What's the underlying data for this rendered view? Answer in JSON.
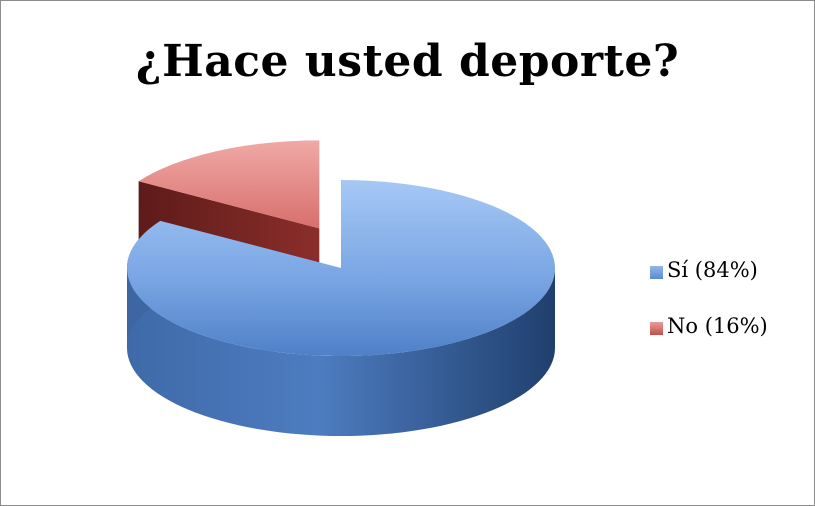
{
  "chart_data": {
    "type": "pie",
    "title": "¿Hace usted deporte?",
    "categories": [
      "Sí (84%)",
      "No (16%)"
    ],
    "values": [
      84,
      16
    ],
    "colors": [
      "#5b8bd0",
      "#c0504d"
    ],
    "exploded": "No (16%)",
    "three_d": true,
    "legend_position": "right"
  }
}
